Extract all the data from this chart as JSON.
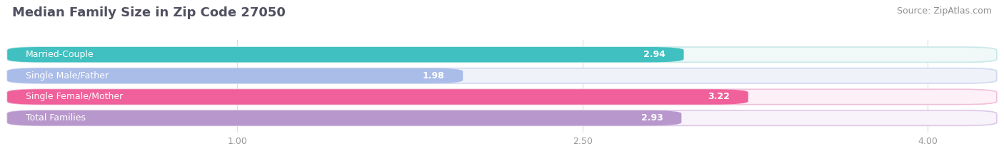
{
  "title": "Median Family Size in Zip Code 27050",
  "source": "Source: ZipAtlas.com",
  "categories": [
    "Married-Couple",
    "Single Male/Father",
    "Single Female/Mother",
    "Total Families"
  ],
  "values": [
    2.94,
    1.98,
    3.22,
    2.93
  ],
  "bar_colors": [
    "#40c0c0",
    "#aabce8",
    "#f0609a",
    "#b898cc"
  ],
  "bar_bg_colors": [
    "#f0f8f8",
    "#f0f2fa",
    "#fdf0f6",
    "#f8f2fa"
  ],
  "bar_border_colors": [
    "#c8e8e8",
    "#d0d8f0",
    "#f0c0d8",
    "#dcc8e8"
  ],
  "xlim_display": [
    0.0,
    4.3
  ],
  "xstart": 0.0,
  "xend": 4.3,
  "xticks": [
    1.0,
    2.5,
    4.0
  ],
  "xtick_labels": [
    "1.00",
    "2.50",
    "4.00"
  ],
  "title_fontsize": 13,
  "source_fontsize": 9,
  "label_fontsize": 9,
  "value_fontsize": 9,
  "bar_height": 0.72,
  "bar_gap": 0.28,
  "background_color": "#ffffff",
  "title_color": "#505060",
  "source_color": "#909090",
  "label_color": "#ffffff",
  "value_color": "#ffffff",
  "tick_color": "#999999"
}
